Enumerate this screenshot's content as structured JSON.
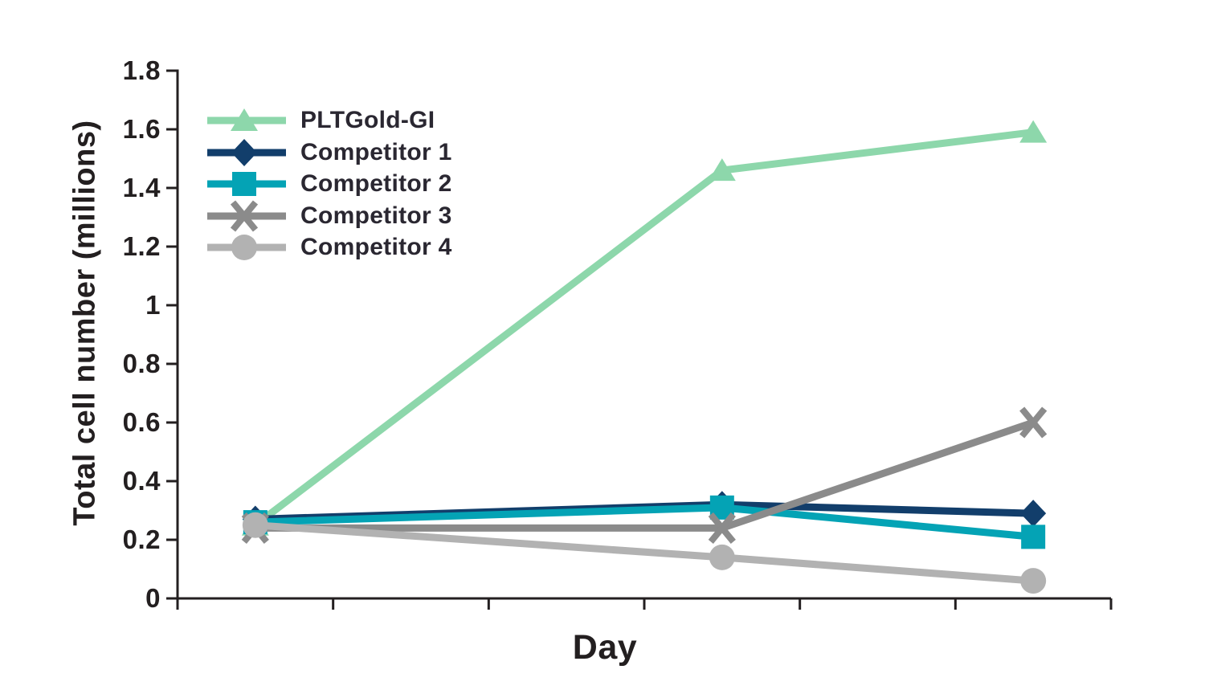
{
  "chart_data": {
    "type": "line",
    "title": "",
    "xlabel": "Day",
    "ylabel": "Total cell number (millions)",
    "grid": false,
    "legend_position": "top-left-inside",
    "x_days": [
      1,
      4,
      6
    ],
    "x_axis": {
      "min": 0,
      "max": 6,
      "tick_count": 7,
      "tick_labels_shown": false
    },
    "y_axis": {
      "min": 0,
      "max": 1.8,
      "step": 0.2,
      "tick_labels": [
        "0",
        "0.2",
        "0.4",
        "0.6",
        "0.8",
        "1",
        "1.2",
        "1.4",
        "1.6",
        "1.8"
      ]
    },
    "colors": {
      "background": "#ffffff",
      "axis": "#231f20",
      "text": "#231f20"
    },
    "series": [
      {
        "name": "PLTGold-GI",
        "marker": "triangle",
        "color": "#8dd7ab",
        "values": [
          0.25,
          1.46,
          1.59
        ]
      },
      {
        "name": "Competitor 1",
        "marker": "diamond",
        "color": "#123e6b",
        "values": [
          0.27,
          0.32,
          0.29
        ]
      },
      {
        "name": "Competitor 2",
        "marker": "square",
        "color": "#04a3b5",
        "values": [
          0.26,
          0.31,
          0.21
        ]
      },
      {
        "name": "Competitor 3",
        "marker": "x",
        "color": "#8b8b8b",
        "values": [
          0.24,
          0.24,
          0.6
        ]
      },
      {
        "name": "Competitor 4",
        "marker": "circle",
        "color": "#b2b2b2",
        "values": [
          0.25,
          0.14,
          0.06
        ]
      }
    ]
  }
}
